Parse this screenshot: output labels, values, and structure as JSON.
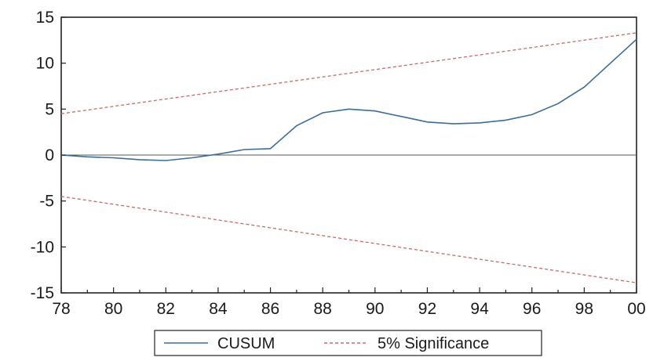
{
  "chart_data": {
    "type": "line",
    "title": "",
    "xlabel": "",
    "ylabel": "",
    "xlim": [
      1978,
      2000
    ],
    "ylim": [
      -15,
      15
    ],
    "x_tick_labels": [
      "78",
      "80",
      "82",
      "84",
      "86",
      "88",
      "90",
      "92",
      "94",
      "96",
      "98",
      "00"
    ],
    "x_tick_values": [
      1978,
      1980,
      1982,
      1984,
      1986,
      1988,
      1990,
      1992,
      1994,
      1996,
      1998,
      2000
    ],
    "y_tick_labels": [
      "15",
      "10",
      "5",
      "0",
      "-5",
      "-10",
      "-15"
    ],
    "y_tick_values": [
      15,
      10,
      5,
      0,
      -5,
      -10,
      -15
    ],
    "grid": false,
    "legend_position": "bottom",
    "series": [
      {
        "name": "CUSUM",
        "style": "solid",
        "color": "#3a6d9a",
        "x": [
          1978,
          1979,
          1980,
          1981,
          1982,
          1983,
          1984,
          1985,
          1986,
          1987,
          1988,
          1989,
          1990,
          1991,
          1992,
          1993,
          1994,
          1995,
          1996,
          1997,
          1998,
          1999,
          2000
        ],
        "y": [
          0.0,
          -0.2,
          -0.3,
          -0.5,
          -0.6,
          -0.3,
          0.1,
          0.6,
          0.7,
          3.2,
          4.6,
          5.0,
          4.8,
          4.2,
          3.6,
          3.4,
          3.5,
          3.8,
          4.4,
          5.6,
          7.4,
          10.0,
          12.6
        ]
      },
      {
        "name": "5% Significance",
        "style": "dashed",
        "color": "#c86a6a",
        "x": [
          1978,
          2000
        ],
        "y": [
          4.5,
          13.3
        ]
      },
      {
        "name": "5% Significance",
        "style": "dashed",
        "color": "#c86a6a",
        "x": [
          1978,
          2000
        ],
        "y": [
          -4.5,
          -13.9
        ]
      }
    ]
  }
}
